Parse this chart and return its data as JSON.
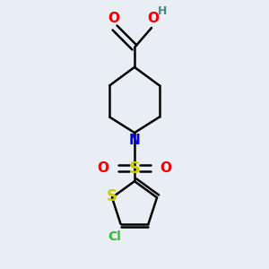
{
  "bg_color": "#e8eef4",
  "bond_color": "#000000",
  "N_color": "#0000ee",
  "O_color": "#ee0000",
  "S_color": "#cccc00",
  "Cl_color": "#33bb33",
  "H_color": "#448888",
  "line_width": 1.8,
  "figsize": [
    3.0,
    3.0
  ],
  "dpi": 100,
  "xlim": [
    0,
    10
  ],
  "ylim": [
    0,
    10
  ]
}
